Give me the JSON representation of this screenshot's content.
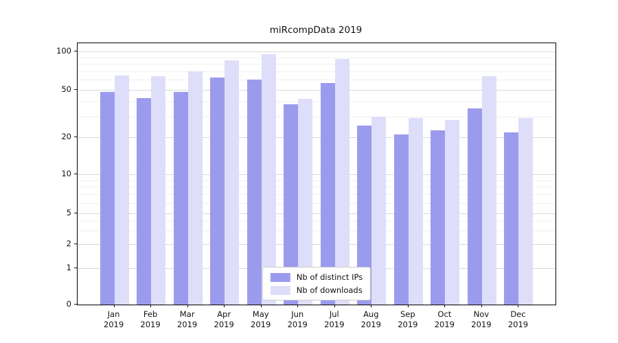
{
  "chart_data": {
    "type": "bar",
    "title": "miRcompData 2019",
    "categories": [
      "Jan",
      "Feb",
      "Mar",
      "Apr",
      "May",
      "Jun",
      "Jul",
      "Aug",
      "Sep",
      "Oct",
      "Nov",
      "Dec"
    ],
    "year_label": "2019",
    "series": [
      {
        "name": "Nb of distinct IPs",
        "color": "#9b9bee",
        "values": [
          48,
          43,
          48,
          63,
          60,
          38,
          57,
          25,
          21,
          23,
          35,
          22
        ]
      },
      {
        "name": "Nb of downloads",
        "color": "#dedefa",
        "values": [
          65,
          64,
          70,
          85,
          95,
          42,
          88,
          30,
          29,
          28,
          64,
          29
        ]
      }
    ],
    "y_ticks": [
      0,
      1,
      2,
      5,
      10,
      20,
      50,
      100
    ],
    "y_scale": "symlog",
    "grid": "horizontal",
    "legend_position": "lower center",
    "ylim": [
      0,
      115
    ]
  }
}
